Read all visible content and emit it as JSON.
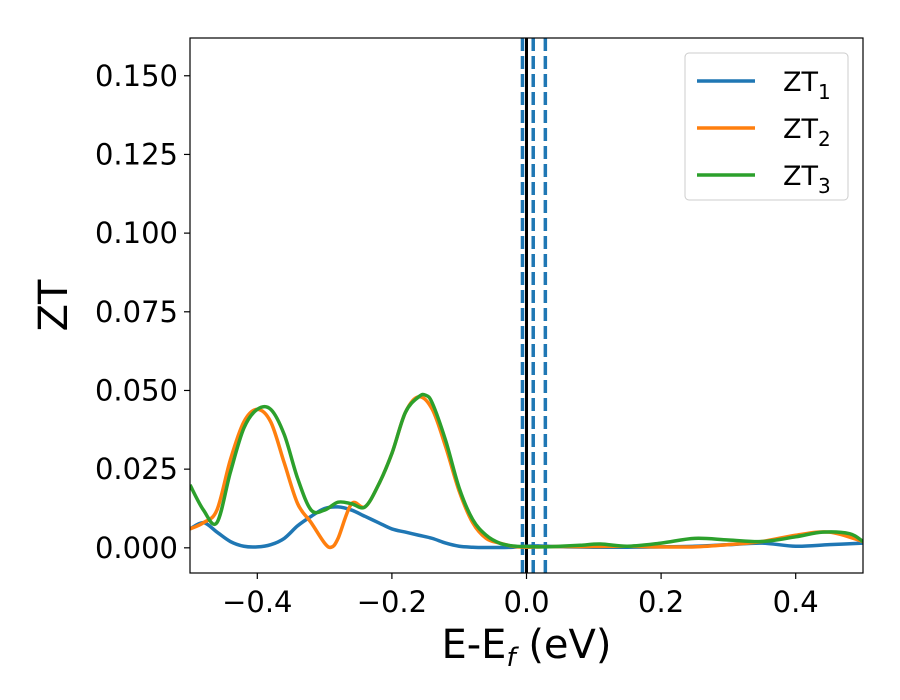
{
  "chart_data": {
    "type": "line",
    "title": "",
    "xlabel": {
      "main": "E-E",
      "sub": "f",
      "tail": " (eV)"
    },
    "ylabel": "ZT",
    "xlim": [
      -0.5,
      0.5
    ],
    "ylim": [
      -0.008,
      0.162
    ],
    "xticks": [
      -0.4,
      -0.2,
      0.0,
      0.2,
      0.4
    ],
    "xtick_labels": [
      "−0.4",
      "−0.2",
      "0.0",
      "0.2",
      "0.4"
    ],
    "yticks": [
      0.0,
      0.025,
      0.05,
      0.075,
      0.1,
      0.125,
      0.15
    ],
    "ytick_labels": [
      "0.000",
      "0.025",
      "0.050",
      "0.075",
      "0.100",
      "0.125",
      "0.150"
    ],
    "grid": false,
    "legend_position": "top-right",
    "vertical_lines": [
      {
        "x": -0.006,
        "style": "dashed",
        "color": "#1f77b4"
      },
      {
        "x": 0.0,
        "style": "solid",
        "color": "#000000"
      },
      {
        "x": 0.01,
        "style": "dashed",
        "color": "#1f77b4"
      },
      {
        "x": 0.028,
        "style": "dashed",
        "color": "#1f77b4"
      }
    ],
    "series": [
      {
        "name": "ZT",
        "sub": "1",
        "color": "#1f77b4",
        "x": [
          -0.5,
          -0.48,
          -0.46,
          -0.44,
          -0.42,
          -0.4,
          -0.38,
          -0.36,
          -0.34,
          -0.32,
          -0.3,
          -0.28,
          -0.26,
          -0.24,
          -0.22,
          -0.2,
          -0.18,
          -0.16,
          -0.14,
          -0.12,
          -0.1,
          -0.08,
          -0.06,
          -0.04,
          -0.02,
          0.0,
          0.02,
          0.04,
          0.06,
          0.1,
          0.15,
          0.2,
          0.25,
          0.3,
          0.35,
          0.4,
          0.45,
          0.5
        ],
        "values": [
          0.006,
          0.008,
          0.005,
          0.002,
          0.0005,
          0.0003,
          0.001,
          0.003,
          0.007,
          0.01,
          0.0125,
          0.013,
          0.012,
          0.01,
          0.008,
          0.006,
          0.005,
          0.004,
          0.003,
          0.0015,
          0.0005,
          0.0002,
          0.0001,
          0.0001,
          0.0002,
          0.0005,
          0.0006,
          0.0004,
          0.0003,
          0.0002,
          0.0002,
          0.0003,
          0.0005,
          0.001,
          0.0015,
          0.0005,
          0.001,
          0.0015
        ]
      },
      {
        "name": "ZT",
        "sub": "2",
        "color": "#ff7f0e",
        "x": [
          -0.5,
          -0.48,
          -0.46,
          -0.44,
          -0.42,
          -0.4,
          -0.38,
          -0.36,
          -0.34,
          -0.32,
          -0.3,
          -0.29,
          -0.28,
          -0.26,
          -0.24,
          -0.22,
          -0.2,
          -0.18,
          -0.16,
          -0.14,
          -0.12,
          -0.1,
          -0.08,
          -0.06,
          -0.04,
          -0.02,
          0.0,
          0.02,
          0.05,
          0.1,
          0.15,
          0.2,
          0.25,
          0.3,
          0.35,
          0.4,
          0.45,
          0.5
        ],
        "values": [
          0.006,
          0.008,
          0.012,
          0.028,
          0.04,
          0.044,
          0.04,
          0.027,
          0.014,
          0.008,
          0.0015,
          0.0002,
          0.003,
          0.014,
          0.013,
          0.02,
          0.03,
          0.043,
          0.048,
          0.044,
          0.032,
          0.018,
          0.008,
          0.003,
          0.0015,
          0.0005,
          0.0002,
          0.0003,
          0.0004,
          0.0004,
          0.0005,
          0.0003,
          0.0003,
          0.001,
          0.002,
          0.004,
          0.005,
          0.002
        ]
      },
      {
        "name": "ZT",
        "sub": "3",
        "color": "#2ca02c",
        "x": [
          -0.5,
          -0.48,
          -0.46,
          -0.44,
          -0.42,
          -0.4,
          -0.38,
          -0.36,
          -0.34,
          -0.32,
          -0.3,
          -0.28,
          -0.26,
          -0.24,
          -0.22,
          -0.2,
          -0.18,
          -0.16,
          -0.15,
          -0.14,
          -0.12,
          -0.1,
          -0.08,
          -0.06,
          -0.04,
          -0.02,
          0.0,
          0.02,
          0.05,
          0.08,
          0.11,
          0.15,
          0.2,
          0.25,
          0.3,
          0.35,
          0.4,
          0.44,
          0.48,
          0.5
        ],
        "values": [
          0.02,
          0.012,
          0.008,
          0.024,
          0.038,
          0.044,
          0.044,
          0.036,
          0.022,
          0.012,
          0.012,
          0.0145,
          0.014,
          0.013,
          0.02,
          0.03,
          0.043,
          0.048,
          0.0485,
          0.046,
          0.034,
          0.019,
          0.009,
          0.004,
          0.0015,
          0.0006,
          0.0004,
          0.0003,
          0.0005,
          0.0008,
          0.0012,
          0.0005,
          0.0015,
          0.003,
          0.0025,
          0.002,
          0.0035,
          0.005,
          0.0045,
          0.002
        ]
      }
    ]
  }
}
